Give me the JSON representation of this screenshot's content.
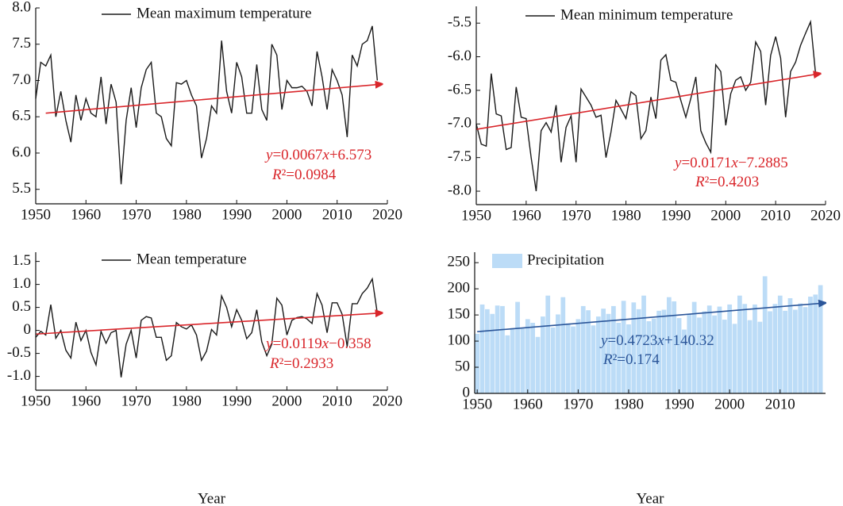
{
  "chart_data": [
    {
      "type": "line",
      "legend": "Mean maximum temperature",
      "annotations": [
        "y=0.0067x+6.573",
        "R²=0.0984"
      ],
      "x": [
        1950,
        1951,
        1952,
        1953,
        1954,
        1955,
        1956,
        1957,
        1958,
        1959,
        1960,
        1961,
        1962,
        1963,
        1964,
        1965,
        1966,
        1967,
        1968,
        1969,
        1970,
        1971,
        1972,
        1973,
        1974,
        1975,
        1976,
        1977,
        1978,
        1979,
        1980,
        1981,
        1982,
        1983,
        1984,
        1985,
        1986,
        1987,
        1988,
        1989,
        1990,
        1991,
        1992,
        1993,
        1994,
        1995,
        1996,
        1997,
        1998,
        1999,
        2000,
        2001,
        2002,
        2003,
        2004,
        2005,
        2006,
        2007,
        2008,
        2009,
        2010,
        2011,
        2012,
        2013,
        2014,
        2015,
        2016,
        2017,
        2018
      ],
      "values": [
        6.75,
        7.25,
        7.2,
        7.35,
        6.5,
        6.85,
        6.45,
        6.15,
        6.8,
        6.45,
        6.75,
        6.55,
        6.5,
        7.05,
        6.4,
        6.95,
        6.7,
        5.57,
        6.45,
        6.9,
        6.35,
        6.9,
        7.15,
        7.25,
        6.55,
        6.5,
        6.2,
        6.1,
        6.97,
        6.95,
        7.0,
        6.8,
        6.65,
        5.93,
        6.2,
        6.65,
        6.55,
        7.55,
        6.85,
        6.55,
        7.25,
        7.05,
        6.55,
        6.55,
        7.22,
        6.6,
        6.45,
        7.5,
        7.35,
        6.6,
        7.0,
        6.9,
        6.9,
        6.92,
        6.85,
        6.65,
        7.4,
        7.05,
        6.6,
        7.15,
        7.0,
        6.8,
        6.22,
        7.35,
        7.2,
        7.5,
        7.55,
        7.75,
        7.0
      ],
      "color": "#1a1a1a",
      "trend": {
        "x": [
          1952,
          2019
        ],
        "y": [
          6.55,
          6.95
        ],
        "color": "#d9262b"
      },
      "xlim": [
        1950,
        2020
      ],
      "xticks": [
        1950,
        1960,
        1970,
        1980,
        1990,
        2000,
        2010,
        2020
      ],
      "ylim": [
        5.3,
        8.0
      ],
      "yticks": [
        {
          "value": 8,
          "label": "8.0"
        },
        7.5,
        {
          "value": 7,
          "label": "7.0"
        },
        6.5,
        {
          "value": 6,
          "label": "6.0"
        },
        5.5
      ]
    },
    {
      "type": "line",
      "legend": "Mean minimum temperature",
      "annotations": [
        "y=0.0171x−7.2885",
        "R²=0.4203"
      ],
      "x": [
        1950,
        1951,
        1952,
        1953,
        1954,
        1955,
        1956,
        1957,
        1958,
        1959,
        1960,
        1961,
        1962,
        1963,
        1964,
        1965,
        1966,
        1967,
        1968,
        1969,
        1970,
        1971,
        1972,
        1973,
        1974,
        1975,
        1976,
        1977,
        1978,
        1979,
        1980,
        1981,
        1982,
        1983,
        1984,
        1985,
        1986,
        1987,
        1988,
        1989,
        1990,
        1991,
        1992,
        1993,
        1994,
        1995,
        1996,
        1997,
        1998,
        1999,
        2000,
        2001,
        2002,
        2003,
        2004,
        2005,
        2006,
        2007,
        2008,
        2009,
        2010,
        2011,
        2012,
        2013,
        2014,
        2015,
        2016,
        2017,
        2018
      ],
      "values": [
        -7.0,
        -7.3,
        -7.33,
        -6.25,
        -6.85,
        -6.88,
        -7.38,
        -7.35,
        -6.45,
        -6.9,
        -6.92,
        -7.5,
        -8.0,
        -7.1,
        -6.98,
        -7.12,
        -6.72,
        -7.57,
        -7.05,
        -6.88,
        -7.57,
        -6.48,
        -6.6,
        -6.72,
        -6.9,
        -6.87,
        -7.5,
        -7.12,
        -6.65,
        -6.78,
        -6.92,
        -6.52,
        -6.58,
        -7.22,
        -7.1,
        -6.6,
        -6.92,
        -6.05,
        -5.97,
        -6.35,
        -6.38,
        -6.65,
        -6.9,
        -6.62,
        -6.3,
        -7.1,
        -7.28,
        -7.42,
        -6.12,
        -6.22,
        -7.02,
        -6.55,
        -6.35,
        -6.3,
        -6.5,
        -6.38,
        -5.78,
        -5.92,
        -6.72,
        -5.98,
        -5.7,
        -6.02,
        -6.9,
        -6.22,
        -6.08,
        -5.83,
        -5.65,
        -5.48,
        -6.25
      ],
      "color": "#1a1a1a",
      "trend": {
        "x": [
          1950,
          2019
        ],
        "y": [
          -7.08,
          -6.25
        ],
        "color": "#d9262b"
      },
      "xlim": [
        1950,
        2020
      ],
      "xticks": [
        1950,
        1960,
        1970,
        1980,
        1990,
        2000,
        2010,
        2020
      ],
      "ylim": [
        -8.2,
        -5.25
      ],
      "yticks": [
        -5.5,
        {
          "value": -6,
          "label": "-6.0"
        },
        -6.5,
        {
          "value": -7,
          "label": "-7.0"
        },
        -7.5,
        {
          "value": -8,
          "label": "-8.0"
        }
      ]
    },
    {
      "type": "line",
      "legend": "Mean temperature",
      "xlabel": "Year",
      "annotations": [
        "y=0.0119x−0.358",
        "R²=0.2933"
      ],
      "x": [
        1950,
        1951,
        1952,
        1953,
        1954,
        1955,
        1956,
        1957,
        1958,
        1959,
        1960,
        1961,
        1962,
        1963,
        1964,
        1965,
        1966,
        1967,
        1968,
        1969,
        1970,
        1971,
        1972,
        1973,
        1974,
        1975,
        1976,
        1977,
        1978,
        1979,
        1980,
        1981,
        1982,
        1983,
        1984,
        1985,
        1986,
        1987,
        1988,
        1989,
        1990,
        1991,
        1992,
        1993,
        1994,
        1995,
        1996,
        1997,
        1998,
        1999,
        2000,
        2001,
        2002,
        2003,
        2004,
        2005,
        2006,
        2007,
        2008,
        2009,
        2010,
        2011,
        2012,
        2013,
        2014,
        2015,
        2016,
        2017,
        2018
      ],
      "values": [
        -0.15,
        -0.02,
        -0.1,
        0.56,
        -0.17,
        0.0,
        -0.43,
        -0.6,
        0.18,
        -0.22,
        0.0,
        -0.48,
        -0.75,
        -0.02,
        -0.28,
        -0.05,
        0.0,
        -1.02,
        -0.3,
        0.0,
        -0.6,
        0.22,
        0.3,
        0.27,
        -0.15,
        -0.15,
        -0.65,
        -0.55,
        0.17,
        0.08,
        0.03,
        0.12,
        -0.1,
        -0.65,
        -0.45,
        0.02,
        -0.1,
        0.75,
        0.5,
        0.08,
        0.45,
        0.22,
        -0.18,
        -0.05,
        0.45,
        -0.25,
        -0.55,
        -0.3,
        0.7,
        0.55,
        -0.1,
        0.22,
        0.28,
        0.3,
        0.25,
        0.15,
        0.8,
        0.55,
        -0.05,
        0.6,
        0.6,
        0.35,
        -0.35,
        0.58,
        0.58,
        0.8,
        0.92,
        1.12,
        0.37
      ],
      "color": "#1a1a1a",
      "trend": {
        "x": [
          1950,
          2019
        ],
        "y": [
          -0.08,
          0.38
        ],
        "color": "#d9262b"
      },
      "xlim": [
        1950,
        2020
      ],
      "xticks": [
        1950,
        1960,
        1970,
        1980,
        1990,
        2000,
        2010,
        2020
      ],
      "ylim": [
        -1.3,
        1.7
      ],
      "yticks": [
        1.5,
        {
          "value": 1,
          "label": "1.0"
        },
        0.5,
        0,
        -0.5,
        {
          "value": -1,
          "label": "-1.0"
        }
      ]
    },
    {
      "type": "bar",
      "legend": "Precipitation",
      "xlabel": "Year",
      "annotations": [
        "y=0.4723x+140.32",
        "R²=0.174"
      ],
      "x": [
        1950,
        1951,
        1952,
        1953,
        1954,
        1955,
        1956,
        1957,
        1958,
        1959,
        1960,
        1961,
        1962,
        1963,
        1964,
        1965,
        1966,
        1967,
        1968,
        1969,
        1970,
        1971,
        1972,
        1973,
        1974,
        1975,
        1976,
        1977,
        1978,
        1979,
        1980,
        1981,
        1982,
        1983,
        1984,
        1985,
        1986,
        1987,
        1988,
        1989,
        1990,
        1991,
        1992,
        1993,
        1994,
        1995,
        1996,
        1997,
        1998,
        1999,
        2000,
        2001,
        2002,
        2003,
        2004,
        2005,
        2006,
        2007,
        2008,
        2009,
        2010,
        2011,
        2012,
        2013,
        2014,
        2015,
        2016,
        2017,
        2018
      ],
      "values": [
        114,
        170,
        161,
        152,
        168,
        167,
        111,
        125,
        175,
        125,
        142,
        135,
        108,
        147,
        187,
        126,
        151,
        184,
        134,
        128,
        142,
        167,
        159,
        130,
        147,
        162,
        152,
        167,
        135,
        177,
        132,
        174,
        161,
        187,
        138,
        143,
        158,
        160,
        184,
        176,
        144,
        122,
        152,
        175,
        145,
        157,
        168,
        149,
        166,
        141,
        170,
        133,
        187,
        171,
        140,
        170,
        137,
        224,
        157,
        171,
        187,
        158,
        182,
        160,
        172,
        165,
        185,
        189,
        207
      ],
      "color": "#bcdcf7",
      "trend": {
        "x": [
          1950,
          2019
        ],
        "y": [
          118,
          173
        ],
        "color": "#2a5599"
      },
      "xlim": [
        1949.5,
        2019
      ],
      "xticks": [
        1950,
        1960,
        1970,
        1980,
        1990,
        2000,
        2010
      ],
      "ylim": [
        0,
        270
      ],
      "yticks": [
        250,
        200,
        150,
        100,
        50,
        0
      ]
    }
  ]
}
